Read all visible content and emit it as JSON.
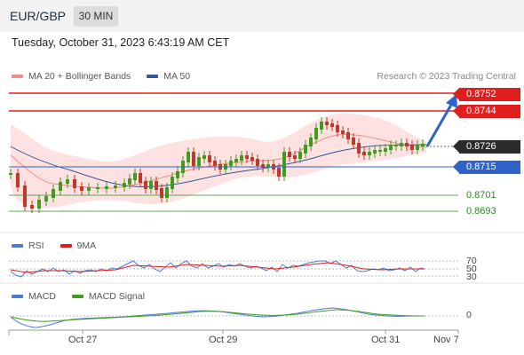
{
  "header": {
    "symbol": "EUR/GBP",
    "timeframe": "30 MIN"
  },
  "datetime": "Tuesday, October 31, 2023 6:43:19 AM CET",
  "legend": {
    "ma20": {
      "label": "MA 20 + Bollinger Bands",
      "color": "#f28b82"
    },
    "ma50": {
      "label": "MA 50",
      "color": "#2f5a9e"
    }
  },
  "credit": "Research © 2023 Trading Central",
  "price_tags": {
    "r2": "0.8752",
    "r1": "0.8744",
    "last": "0.8726",
    "pivot": "0.8715",
    "s1": "0.8701",
    "s2": "0.8693"
  },
  "rsi_legend": {
    "rsi": "RSI",
    "ma9": "9MA",
    "rsi_color": "#4b7bd6",
    "ma9_color": "#e01e1e"
  },
  "rsi_levels": [
    "70",
    "50",
    "30"
  ],
  "macd_legend": {
    "macd": "MACD",
    "signal": "MACD Signal",
    "macd_color": "#4b7bd6",
    "signal_color": "#3f9c1f"
  },
  "macd_zero": "0",
  "x_axis": [
    "Oct 27",
    "Oct 29",
    "Oct 31",
    "Nov 7"
  ],
  "colors": {
    "up": "#3f9c1f",
    "down": "#c0392b",
    "resistance": "#e01e1e",
    "pivot": "#2f63c9",
    "support": "#2e8b22"
  }
}
